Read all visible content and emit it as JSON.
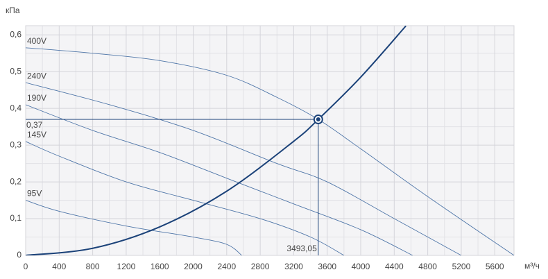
{
  "chart_data": {
    "type": "line",
    "y_unit": "кПа",
    "x_unit": "м³/ч",
    "xlim": [
      0,
      5830
    ],
    "ylim": [
      0,
      0.625
    ],
    "xticks": [
      0,
      400,
      800,
      1200,
      1600,
      2000,
      2400,
      2800,
      3200,
      3600,
      4000,
      4400,
      4800,
      5200,
      5600
    ],
    "yticks": [
      0,
      {
        "value": 0.1,
        "label": "0,1"
      },
      {
        "value": 0.2,
        "label": "0,2"
      },
      {
        "value": 0.3,
        "label": "0,3"
      },
      {
        "value": 0.4,
        "label": "0,4"
      },
      {
        "value": 0.5,
        "label": "0,5"
      },
      {
        "value": 0.6,
        "label": "0,6"
      }
    ],
    "grid": true,
    "series": [
      {
        "name": "400V",
        "color": "#4f76a8",
        "x": [
          0,
          800,
          1600,
          2400,
          3000,
          3493.05,
          4000,
          4800,
          5830
        ],
        "values": [
          0.565,
          0.55,
          0.53,
          0.49,
          0.43,
          0.37,
          0.29,
          0.16,
          0
        ]
      },
      {
        "name": "240V",
        "color": "#4f76a8",
        "x": [
          0,
          1000,
          2000,
          3000,
          3600,
          4400,
          5200
        ],
        "values": [
          0.47,
          0.41,
          0.34,
          0.25,
          0.2,
          0.1,
          0
        ]
      },
      {
        "name": "190V",
        "color": "#4f76a8",
        "x": [
          0,
          800,
          1600,
          2400,
          3200,
          4000,
          4620
        ],
        "values": [
          0.41,
          0.34,
          0.28,
          0.21,
          0.14,
          0.07,
          0
        ]
      },
      {
        "name": "145V",
        "color": "#4f76a8",
        "x": [
          0,
          400,
          1200,
          2000,
          2800,
          3400,
          3800
        ],
        "values": [
          0.31,
          0.27,
          0.2,
          0.15,
          0.1,
          0.05,
          0
        ]
      },
      {
        "name": "95V",
        "color": "#4f76a8",
        "x": [
          0,
          400,
          1200,
          2000,
          2400,
          2580
        ],
        "values": [
          0.15,
          0.12,
          0.08,
          0.05,
          0.03,
          0
        ]
      }
    ],
    "system_curve": {
      "color": "#1b4279",
      "x": [
        0,
        800,
        1600,
        2400,
        3200,
        3493.05,
        4000,
        4540
      ],
      "values": [
        0,
        0.0194,
        0.0776,
        0.1747,
        0.3105,
        0.37,
        0.485,
        0.6245
      ]
    },
    "operating_point": {
      "x": 3493.05,
      "y": 0.37,
      "x_label": "3493,05",
      "y_label": "0,37",
      "color": "#1b4279"
    }
  }
}
